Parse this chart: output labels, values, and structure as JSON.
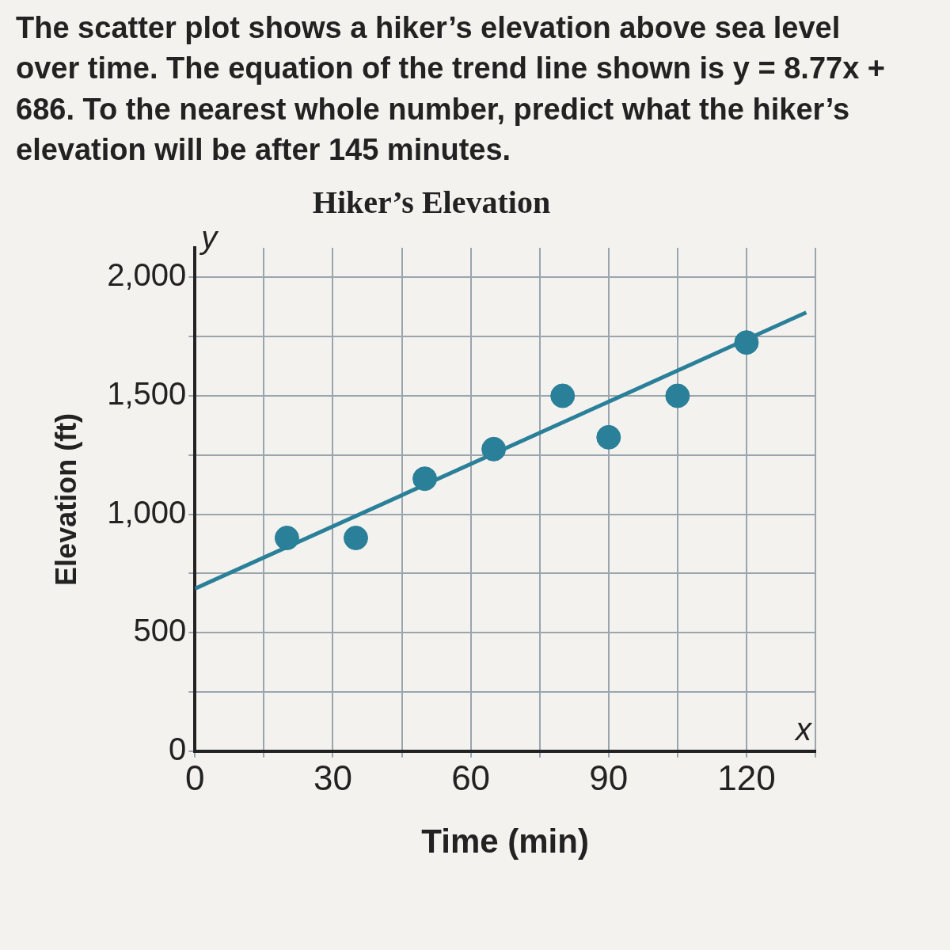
{
  "chart_data": {
    "type": "scatter",
    "title": "Hiker’s Elevation",
    "xlabel": "Time (min)",
    "ylabel": "Elevation (ft)",
    "annotations": [
      "The scatter plot shows a hiker’s elevation above sea level over time. The equation of the trend line shown is y = 8.77x + 686. To the nearest whole number, predict what the hiker’s elevation will be after 145 minutes.",
      "x",
      "y"
    ],
    "x": [
      20,
      35,
      50,
      65,
      80,
      90,
      105,
      120
    ],
    "series": [
      {
        "type": "scatter",
        "marker": "circle",
        "color": "#2a7f99",
        "values": [
          900,
          900,
          1150,
          1275,
          1500,
          1325,
          1500,
          1725
        ]
      },
      {
        "type": "line",
        "marker": "none",
        "color": "#2a7f99",
        "x": [
          0,
          133
        ],
        "values": [
          686,
          1852
        ]
      }
    ],
    "xlim": [
      0,
      135
    ],
    "ylim": [
      0,
      2125
    ],
    "xticks": [
      0,
      {
        "value": 15,
        "label": null
      },
      30,
      {
        "value": 45,
        "label": null
      },
      60,
      {
        "value": 75,
        "label": null
      },
      90,
      {
        "value": 105,
        "label": null
      },
      120,
      {
        "value": 135,
        "label": null
      }
    ],
    "yticks": [
      0,
      {
        "value": 250,
        "label": null
      },
      500,
      {
        "value": 750,
        "label": null
      },
      {
        "value": 1000,
        "label": "1,000"
      },
      {
        "value": 1250,
        "label": null
      },
      {
        "value": 1500,
        "label": "1,500"
      },
      {
        "value": 1750,
        "label": null
      },
      {
        "value": 2000,
        "label": "2,000"
      }
    ],
    "grid": true,
    "legend": false,
    "line_style": "solid"
  }
}
